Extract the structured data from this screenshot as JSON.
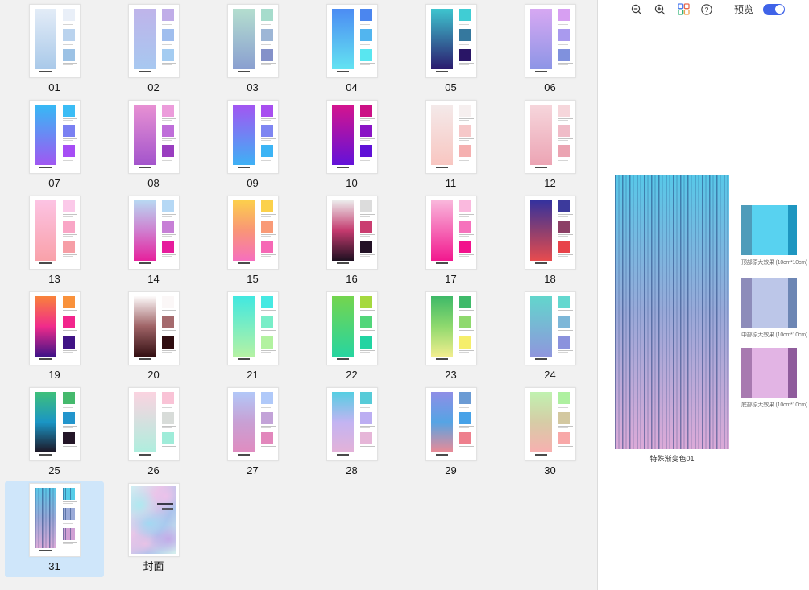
{
  "toolbar": {
    "preview_label": "预览",
    "toggle_on": true,
    "accent_color": "#3f63e8",
    "icons": [
      "zoom-out-icon",
      "zoom-in-icon",
      "grid-view-icon",
      "help-icon",
      "preview-toggle"
    ]
  },
  "slides": [
    {
      "label": "01",
      "type": "gradient",
      "stops": [
        "#e3ecf7",
        "#a9c9e9"
      ],
      "swatches": [
        "#e9eff8",
        "#bad3ee",
        "#9cc2e5"
      ]
    },
    {
      "label": "02",
      "type": "gradient",
      "stops": [
        "#bfb4ea",
        "#a7c8f0"
      ],
      "swatches": [
        "#c0ade8",
        "#a0beee",
        "#a4ccf1"
      ]
    },
    {
      "label": "03",
      "type": "gradient",
      "stops": [
        "#b4decf",
        "#8a9fd0"
      ],
      "swatches": [
        "#a6dccc",
        "#9db6d6",
        "#8491c9"
      ]
    },
    {
      "label": "04",
      "type": "gradient",
      "stops": [
        "#4c8cf3",
        "#63e3f2"
      ],
      "swatches": [
        "#4b86ef",
        "#52b5ef",
        "#59e6f0"
      ]
    },
    {
      "label": "05",
      "type": "gradient",
      "stops": [
        "#3ec5cf",
        "#2b1a6e"
      ],
      "swatches": [
        "#40cdd4",
        "#35789e",
        "#291566"
      ]
    },
    {
      "label": "06",
      "type": "gradient",
      "stops": [
        "#d7a8f2",
        "#8d95e6"
      ],
      "swatches": [
        "#d79ff2",
        "#a99aee",
        "#8091dd"
      ]
    },
    {
      "label": "07",
      "type": "gradient",
      "stops": [
        "#35baf5",
        "#a057f2"
      ],
      "swatches": [
        "#3bbcf5",
        "#7a80f2",
        "#a64df5"
      ]
    },
    {
      "label": "08",
      "type": "gradient",
      "stops": [
        "#e891d3",
        "#a354cc"
      ],
      "swatches": [
        "#ec9cdb",
        "#bf6ed9",
        "#9a3ec0"
      ]
    },
    {
      "label": "09",
      "type": "gradient",
      "stops": [
        "#a355f2",
        "#3eb1f5"
      ],
      "swatches": [
        "#a84ff0",
        "#7f86f2",
        "#3cb4f5"
      ]
    },
    {
      "label": "10",
      "type": "gradient",
      "stops": [
        "#d5148d",
        "#6312d9"
      ],
      "swatches": [
        "#cc1086",
        "#8a14c5",
        "#6011d6"
      ]
    },
    {
      "label": "11",
      "type": "gradient",
      "stops": [
        "#f4eaea",
        "#f8c6c1"
      ],
      "swatches": [
        "#f6efef",
        "#f6c8c9",
        "#f5b0b0"
      ]
    },
    {
      "label": "12",
      "type": "gradient",
      "stops": [
        "#f6d6dc",
        "#eca4b4"
      ],
      "swatches": [
        "#f6d6db",
        "#f0bcc8",
        "#eba4b2"
      ]
    },
    {
      "label": "13",
      "type": "gradient",
      "stops": [
        "#fcc3e3",
        "#f9a1a9"
      ],
      "swatches": [
        "#fbc9e9",
        "#f9a6c6",
        "#f69ea6"
      ]
    },
    {
      "label": "14",
      "type": "gradient",
      "stops": [
        "#b8d8f2",
        "#cf7fd0",
        "#e6209c"
      ],
      "swatches": [
        "#b5d8f5",
        "#c77fd6",
        "#e61c9c"
      ]
    },
    {
      "label": "15",
      "type": "gradient",
      "stops": [
        "#fccf4c",
        "#f99577",
        "#f66fbe"
      ],
      "swatches": [
        "#fbd14b",
        "#f99a77",
        "#f668b5"
      ]
    },
    {
      "label": "16",
      "type": "gradient",
      "stops": [
        "#ececec",
        "#c43a6e",
        "#1d1020"
      ],
      "swatches": [
        "#dcdcdc",
        "#ca3d70",
        "#221125"
      ]
    },
    {
      "label": "17",
      "type": "gradient",
      "stops": [
        "#f9b7dc",
        "#f2188e"
      ],
      "swatches": [
        "#fab9de",
        "#f672bc",
        "#f2128c"
      ]
    },
    {
      "label": "18",
      "type": "gradient",
      "stops": [
        "#34319e",
        "#8c3f70",
        "#e84b4e"
      ],
      "swatches": [
        "#3c3a9c",
        "#8c3f66",
        "#e8434a"
      ]
    },
    {
      "label": "19",
      "type": "gradient",
      "stops": [
        "#f9823a",
        "#f02b8b",
        "#3f1387"
      ],
      "swatches": [
        "#f9913b",
        "#f2258c",
        "#401385"
      ]
    },
    {
      "label": "20",
      "type": "gradient",
      "stops": [
        "#fdfbfb",
        "#9f6366",
        "#330f12"
      ],
      "swatches": [
        "#fbf7f7",
        "#a56a6d",
        "#2f0d10"
      ]
    },
    {
      "label": "21",
      "type": "gradient",
      "stops": [
        "#41e8e0",
        "#b5f2a4"
      ],
      "swatches": [
        "#45e9e2",
        "#78eec8",
        "#b2f2a0"
      ]
    },
    {
      "label": "22",
      "type": "gradient",
      "stops": [
        "#74d54e",
        "#27d5a0"
      ],
      "swatches": [
        "#a5d93f",
        "#52d67a",
        "#22d4a2"
      ]
    },
    {
      "label": "23",
      "type": "gradient",
      "stops": [
        "#3eb968",
        "#8fd96e",
        "#f2ee8e"
      ],
      "swatches": [
        "#3fba6a",
        "#8fd96e",
        "#f5ee6b"
      ]
    },
    {
      "label": "24",
      "type": "gradient",
      "stops": [
        "#62d6cc",
        "#8f96dd"
      ],
      "swatches": [
        "#63d8cf",
        "#7db7d8",
        "#8b92dd"
      ]
    },
    {
      "label": "25",
      "type": "gradient",
      "stops": [
        "#3fc07a",
        "#1a95c5",
        "#1d1524"
      ],
      "swatches": [
        "#45b96d",
        "#2395cc",
        "#241628"
      ]
    },
    {
      "label": "26",
      "type": "gradient",
      "stops": [
        "#fbd3e0",
        "#aeeede"
      ],
      "swatches": [
        "#f9c3d6",
        "#d8dcd9",
        "#9fecd9"
      ]
    },
    {
      "label": "27",
      "type": "gradient",
      "stops": [
        "#b2c8f8",
        "#c8a0d4",
        "#e08cc0"
      ],
      "swatches": [
        "#b0c9f9",
        "#c3a3d8",
        "#e287bc"
      ]
    },
    {
      "label": "28",
      "type": "gradient",
      "stops": [
        "#55cee2",
        "#c3b4f2",
        "#e4b2d8"
      ],
      "swatches": [
        "#57cbd8",
        "#bcaef2",
        "#e6b6d8"
      ]
    },
    {
      "label": "29",
      "type": "gradient",
      "stops": [
        "#8f8ee6",
        "#55a4e4",
        "#ec8a95"
      ],
      "swatches": [
        "#6b9bd4",
        "#47a2e8",
        "#ee7f8d"
      ]
    },
    {
      "label": "30",
      "type": "gradient",
      "stops": [
        "#c0f2b0",
        "#d6cca6",
        "#f8b0b0"
      ],
      "swatches": [
        "#aef0a0",
        "#d3c8a0",
        "#f8a8a8"
      ]
    },
    {
      "label": "31",
      "type": "stripes",
      "selected": true,
      "stops": [
        "#58c8e8",
        "#98a8d8",
        "#dcaad8"
      ],
      "swatches": [
        "#55cce8",
        "#9aaad8",
        "#d0a0d4"
      ]
    },
    {
      "label": "封面",
      "type": "cover"
    }
  ],
  "preview": {
    "title": "特殊渐变色01",
    "stripe_stops": [
      "#58c8e8",
      "#98a8d8",
      "#dcaad8"
    ],
    "details": [
      {
        "caption": "顶部原大效果 (10cm*10cm)",
        "left": "#4e9cba",
        "center": "#58d2f0",
        "right": "#1e96c0"
      },
      {
        "caption": "中部原大效果 (10cm*10cm)",
        "left": "#8d8cba",
        "center": "#bcc6e8",
        "right": "#6d86b4"
      },
      {
        "caption": "底部原大效果 (10cm*10cm)",
        "left": "#a87ab0",
        "center": "#e2b4e4",
        "right": "#8f5c9c"
      }
    ]
  }
}
